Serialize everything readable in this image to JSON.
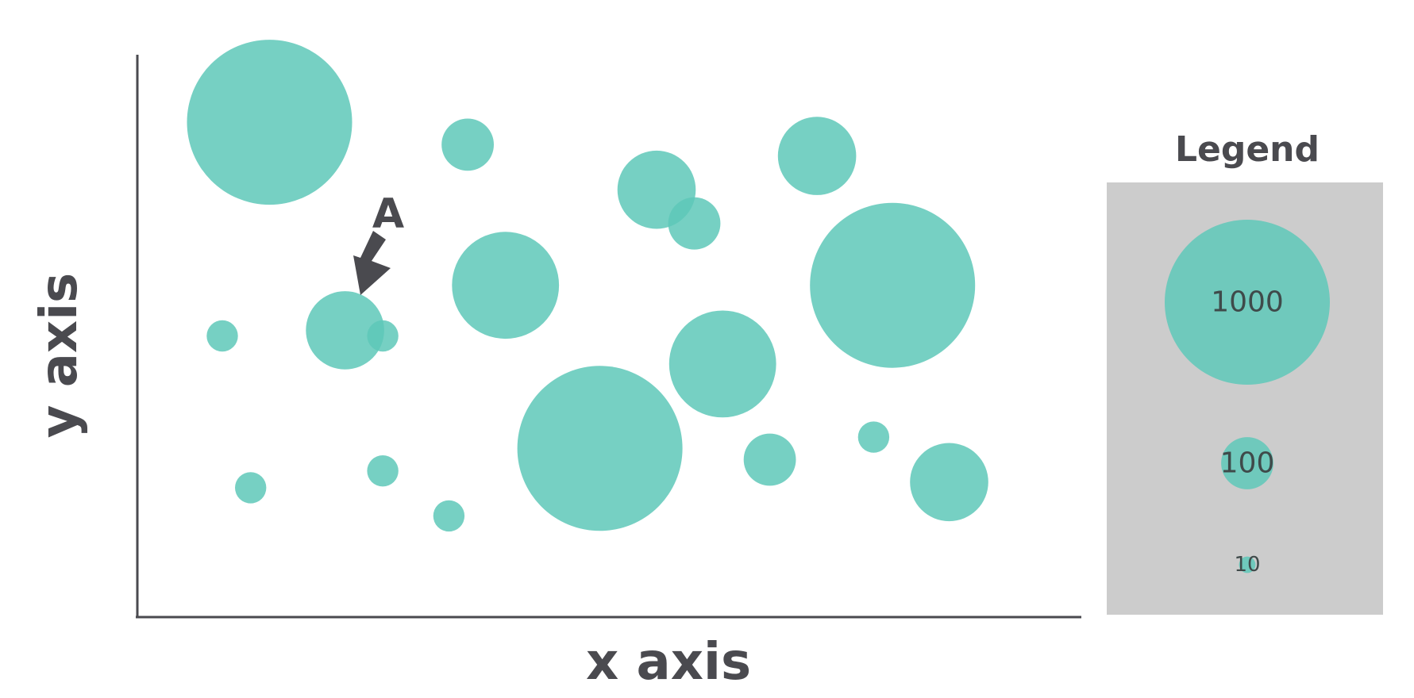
{
  "chart_data": {
    "type": "scatter",
    "subtype": "bubble",
    "title": "",
    "xlabel": "x axis",
    "ylabel": "y axis",
    "grid": false,
    "legend_position": "right",
    "colors": {
      "bubble": "#5ec8b8",
      "axis": "#4a4a4f",
      "legend_panel": "#cccccc"
    },
    "legend": {
      "title": "Legend",
      "items": [
        {
          "label": "1000",
          "size": 1000
        },
        {
          "label": "100",
          "size": 100
        },
        {
          "label": "10",
          "size": 10
        }
      ]
    },
    "annotation": {
      "label": "A",
      "target_index": 4
    },
    "points": [
      {
        "x": 1.4,
        "y": 8.8,
        "size": 1000
      },
      {
        "x": 3.5,
        "y": 8.4,
        "size": 100
      },
      {
        "x": 5.5,
        "y": 7.6,
        "size": 225
      },
      {
        "x": 5.9,
        "y": 7.0,
        "size": 100
      },
      {
        "x": 2.2,
        "y": 5.1,
        "size": 225
      },
      {
        "x": 0.9,
        "y": 5.0,
        "size": 36
      },
      {
        "x": 2.6,
        "y": 5.0,
        "size": 36
      },
      {
        "x": 3.9,
        "y": 5.9,
        "size": 420
      },
      {
        "x": 7.2,
        "y": 8.2,
        "size": 225
      },
      {
        "x": 8.0,
        "y": 5.9,
        "size": 1000
      },
      {
        "x": 6.2,
        "y": 4.5,
        "size": 420
      },
      {
        "x": 1.2,
        "y": 2.3,
        "size": 36
      },
      {
        "x": 2.6,
        "y": 2.6,
        "size": 36
      },
      {
        "x": 3.3,
        "y": 1.8,
        "size": 36
      },
      {
        "x": 4.9,
        "y": 3.0,
        "size": 1000
      },
      {
        "x": 6.7,
        "y": 2.8,
        "size": 100
      },
      {
        "x": 7.8,
        "y": 3.2,
        "size": 36
      },
      {
        "x": 8.6,
        "y": 2.4,
        "size": 225
      }
    ],
    "xlim": [
      0,
      10
    ],
    "ylim": [
      0,
      10
    ]
  }
}
